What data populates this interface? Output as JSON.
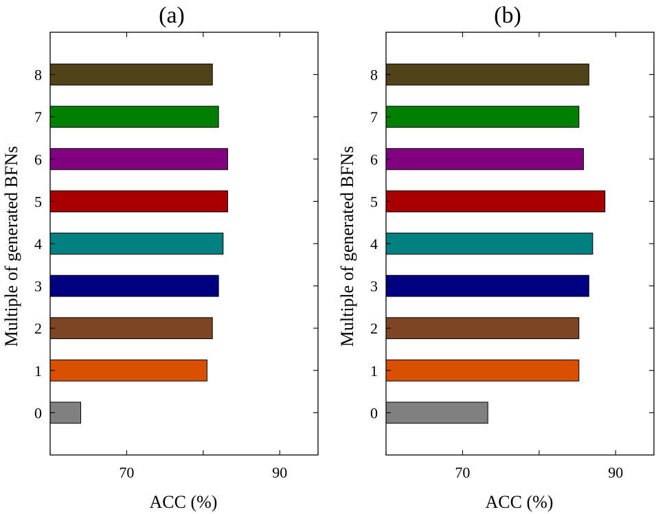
{
  "ylabel": "Multiple of generated BFNs",
  "chart_data": [
    {
      "type": "bar",
      "orientation": "horizontal",
      "title": "(a)",
      "xlabel": "ACC (%)",
      "ylabel": "Multiple of generated BFNs",
      "xlim": [
        60,
        95
      ],
      "xticks": [
        70,
        90
      ],
      "ylim": [
        -1,
        9
      ],
      "categories": [
        "0",
        "1",
        "2",
        "3",
        "4",
        "5",
        "6",
        "7",
        "8"
      ],
      "values": [
        64.0,
        80.5,
        81.2,
        82.0,
        82.6,
        83.2,
        83.2,
        82.0,
        81.2
      ],
      "colors": [
        "#808080",
        "#d95000",
        "#7e4524",
        "#000080",
        "#008080",
        "#a80000",
        "#800080",
        "#008000",
        "#504219"
      ]
    },
    {
      "type": "bar",
      "orientation": "horizontal",
      "title": "(b)",
      "xlabel": "ACC (%)",
      "ylabel": "Multiple of generated BFNs",
      "xlim": [
        60,
        95
      ],
      "xticks": [
        70,
        90
      ],
      "ylim": [
        -1,
        9
      ],
      "categories": [
        "0",
        "1",
        "2",
        "3",
        "4",
        "5",
        "6",
        "7",
        "8"
      ],
      "values": [
        73.3,
        85.2,
        85.2,
        86.5,
        87.0,
        88.6,
        85.8,
        85.2,
        86.5
      ],
      "colors": [
        "#808080",
        "#d95000",
        "#7e4524",
        "#000080",
        "#008080",
        "#a80000",
        "#800080",
        "#008000",
        "#504219"
      ]
    }
  ]
}
